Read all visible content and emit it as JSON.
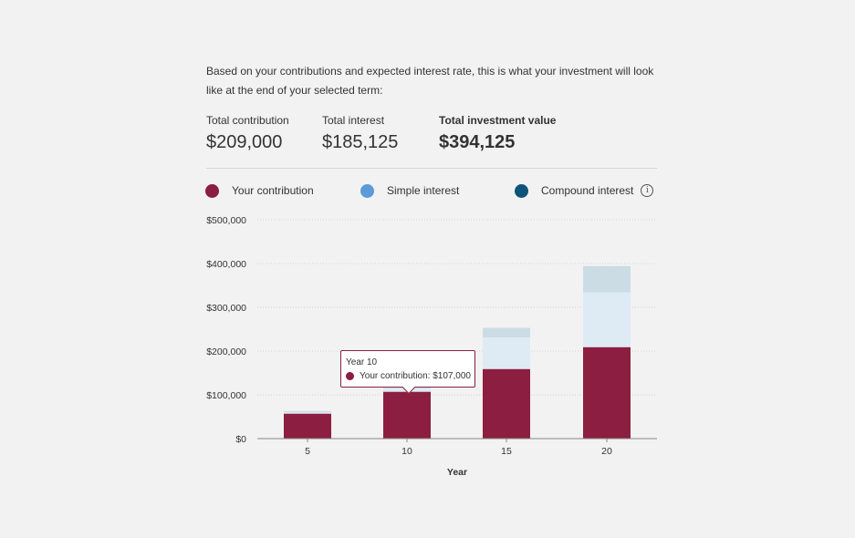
{
  "intro_text": "Based on your contributions and expected interest rate, this is what your investment will look like at the end of your selected term:",
  "summary": {
    "contribution": {
      "label": "Total contribution",
      "value": "$209,000"
    },
    "interest": {
      "label": "Total interest",
      "value": "$185,125"
    },
    "total": {
      "label": "Total investment value",
      "value": "$394,125"
    }
  },
  "legend": [
    {
      "label": "Your contribution",
      "color": "#8b1e41"
    },
    {
      "label": "Simple interest",
      "color": "#5b9bd8"
    },
    {
      "label": "Compound interest",
      "color": "#0f5478",
      "icon": "info-icon"
    }
  ],
  "tooltip": {
    "title": "Year 10",
    "text": "Your contribution: $107,000"
  },
  "chart_data": {
    "type": "bar",
    "stacked": true,
    "xlabel": "Year",
    "ylabel": "",
    "ylim": [
      0,
      500000
    ],
    "yticks": [
      0,
      100000,
      200000,
      300000,
      400000,
      500000
    ],
    "ytick_labels": [
      "$0",
      "$100,000",
      "$200,000",
      "$300,000",
      "$400,000",
      "$500,000"
    ],
    "categories": [
      "5",
      "10",
      "15",
      "20"
    ],
    "series": [
      {
        "name": "Your contribution",
        "color": "#8b1e41",
        "values": [
          57000,
          107000,
          159000,
          209000
        ]
      },
      {
        "name": "Simple interest",
        "color": "#deebf4",
        "values": [
          3000,
          8000,
          72000,
          125000
        ]
      },
      {
        "name": "Compound interest",
        "color": "#ccdce5",
        "values": [
          3000,
          3000,
          22000,
          60125
        ]
      }
    ],
    "grid": true,
    "legend_position": "top"
  }
}
